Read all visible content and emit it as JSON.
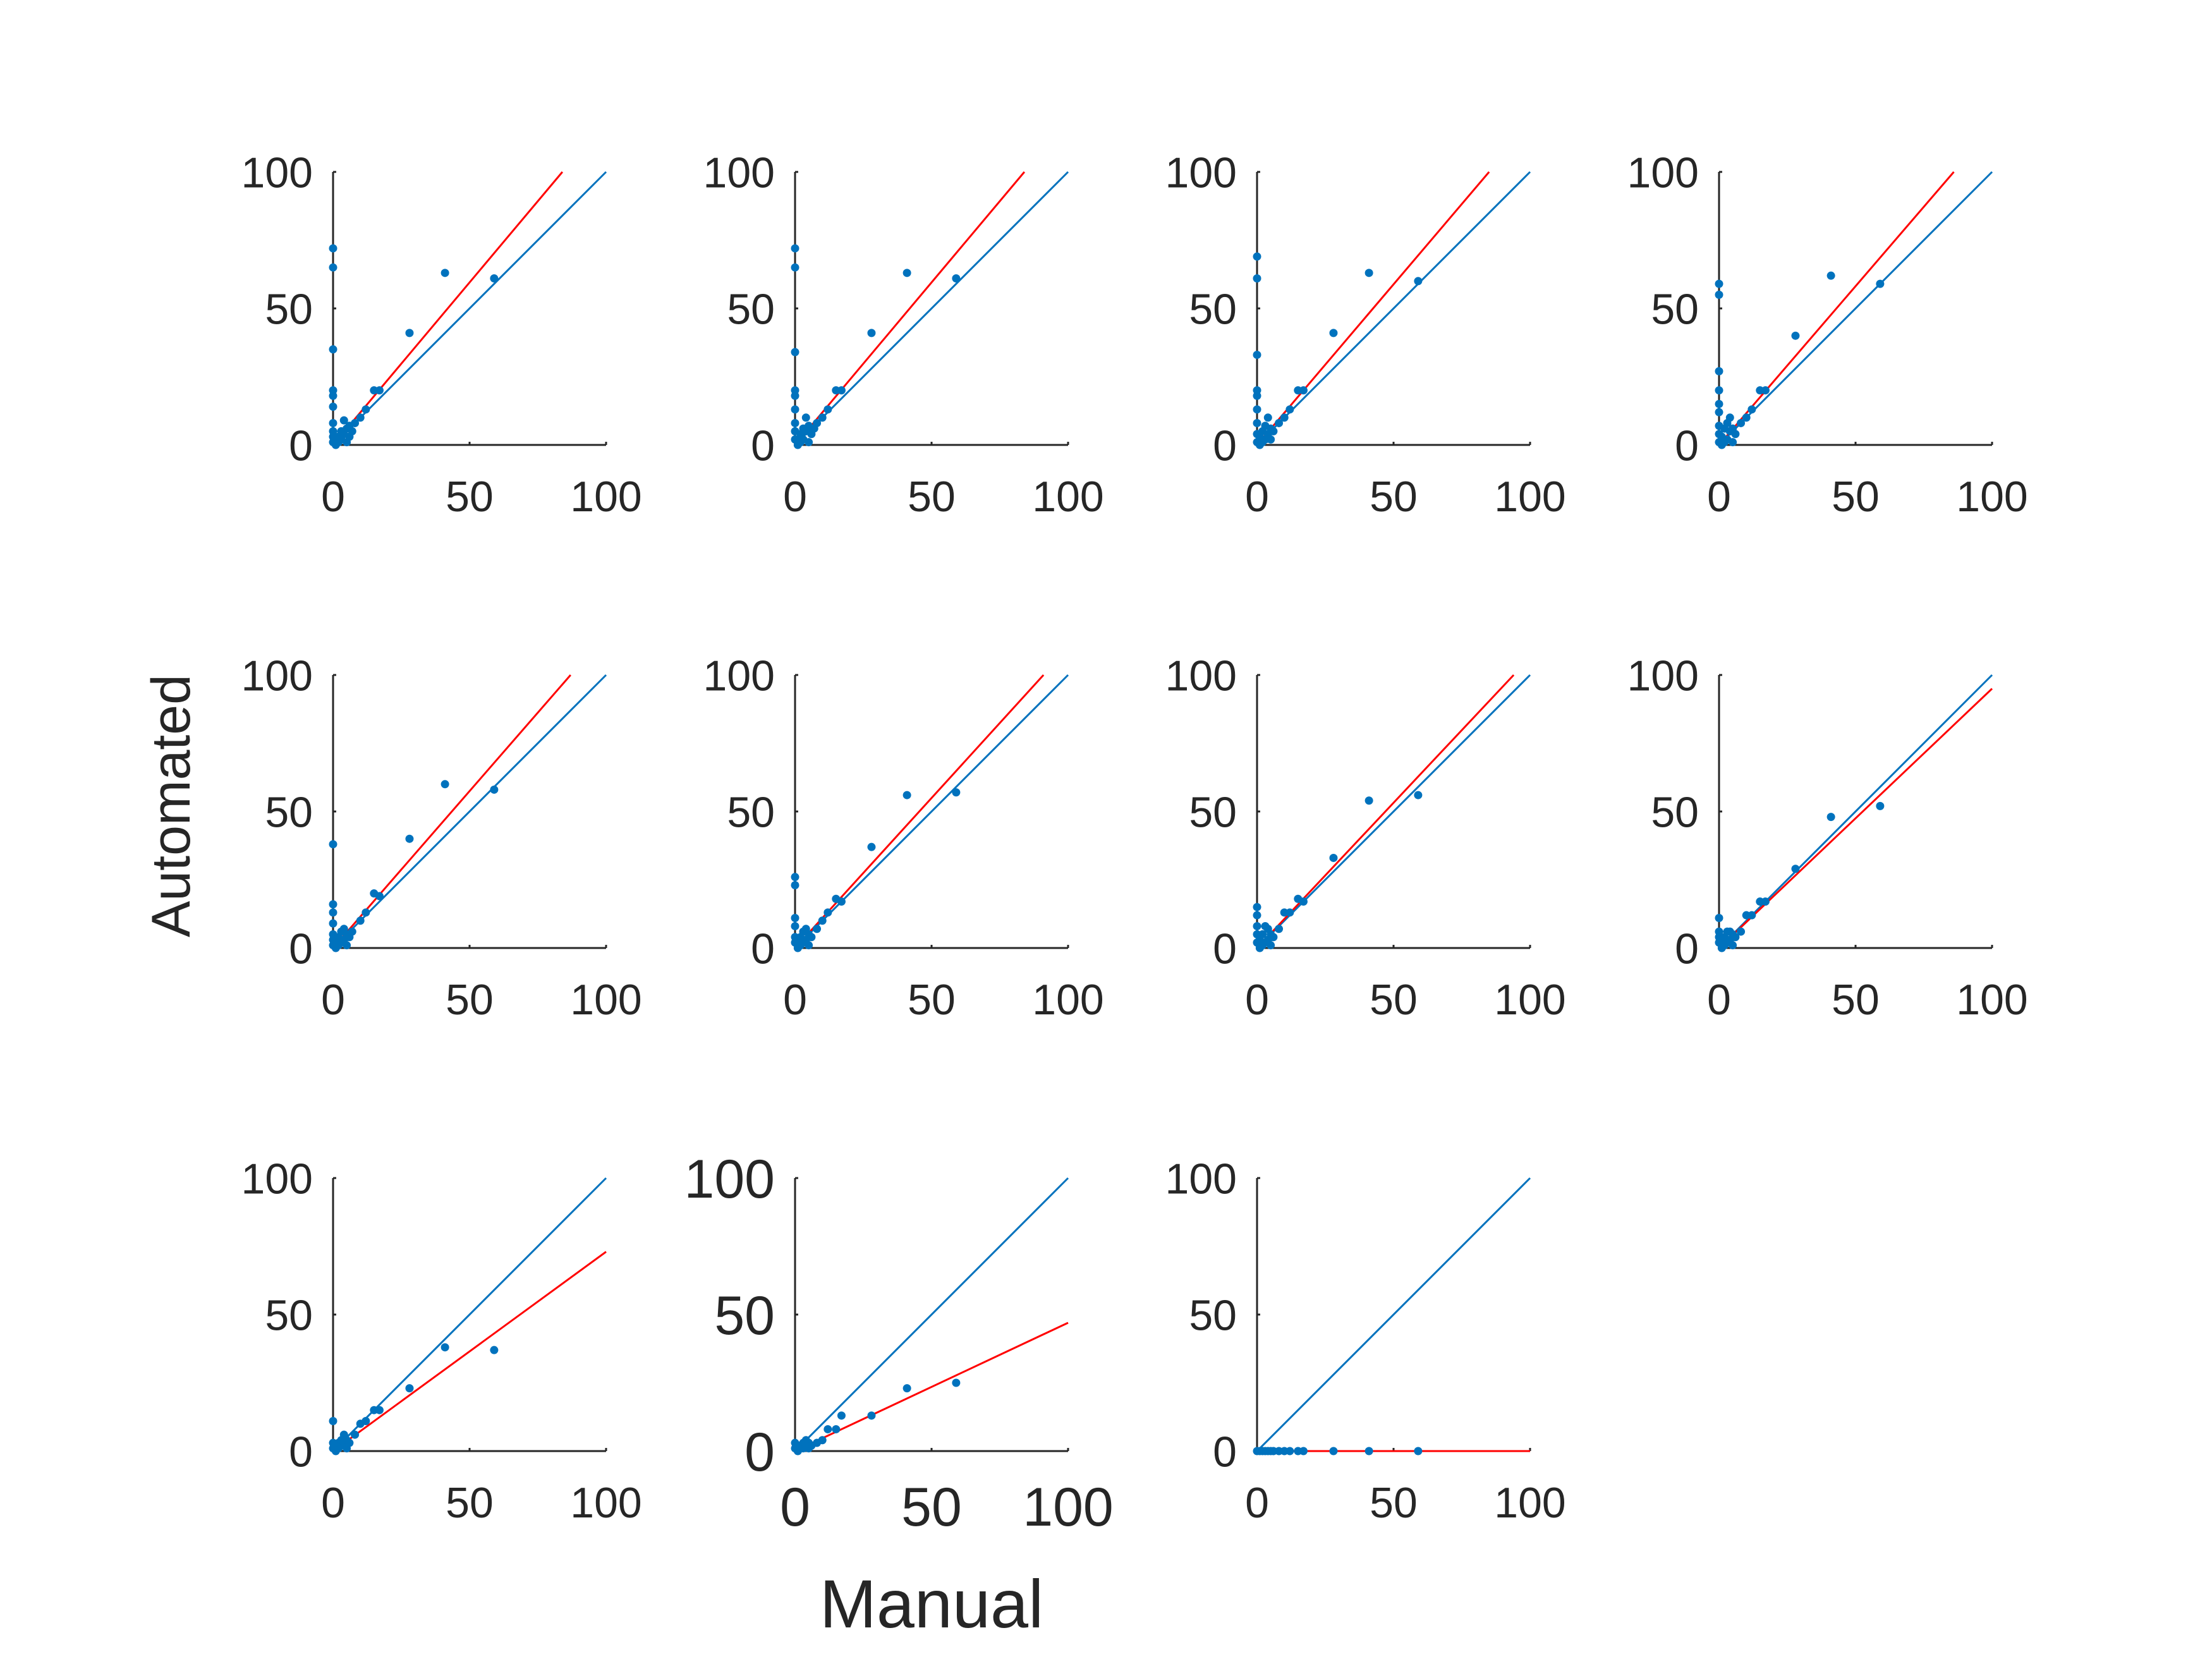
{
  "figure": {
    "xlabel": "Manual",
    "ylabel": "Automated",
    "colors": {
      "points": "#0072BD",
      "identity_line": "#0072BD",
      "fit_line": "#FF0000",
      "axis": "#262626"
    }
  },
  "chart_data": [
    {
      "type": "scatter",
      "row": 1,
      "col": 1,
      "xlim": [
        0,
        100
      ],
      "ylim": [
        0,
        100
      ],
      "xticks": [
        "0",
        "50",
        "100"
      ],
      "yticks": [
        "0",
        "50",
        "100"
      ],
      "grid": false,
      "identity_line": [
        [
          0,
          0
        ],
        [
          100,
          100
        ]
      ],
      "fit_line": [
        [
          0,
          0
        ],
        [
          84,
          100
        ]
      ],
      "points": [
        [
          0,
          72
        ],
        [
          0,
          65
        ],
        [
          0,
          35
        ],
        [
          0,
          20
        ],
        [
          0,
          18
        ],
        [
          0,
          14
        ],
        [
          0,
          8
        ],
        [
          0,
          5
        ],
        [
          0,
          3
        ],
        [
          0,
          1
        ],
        [
          1,
          0
        ],
        [
          1,
          2
        ],
        [
          2,
          1
        ],
        [
          2,
          3
        ],
        [
          3,
          2
        ],
        [
          3,
          5
        ],
        [
          4,
          4
        ],
        [
          4,
          9
        ],
        [
          5,
          1
        ],
        [
          5,
          6
        ],
        [
          6,
          3
        ],
        [
          6,
          7
        ],
        [
          7,
          5
        ],
        [
          8,
          8
        ],
        [
          10,
          10
        ],
        [
          12,
          13
        ],
        [
          15,
          20
        ],
        [
          17,
          20
        ],
        [
          28,
          41
        ],
        [
          41,
          63
        ],
        [
          59,
          61
        ]
      ]
    },
    {
      "type": "scatter",
      "row": 1,
      "col": 2,
      "xlim": [
        0,
        100
      ],
      "ylim": [
        0,
        100
      ],
      "xticks": [
        "0",
        "50",
        "100"
      ],
      "yticks": [
        "0",
        "50",
        "100"
      ],
      "grid": false,
      "identity_line": [
        [
          0,
          0
        ],
        [
          100,
          100
        ]
      ],
      "fit_line": [
        [
          0,
          0
        ],
        [
          84,
          100
        ]
      ],
      "points": [
        [
          0,
          72
        ],
        [
          0,
          65
        ],
        [
          0,
          34
        ],
        [
          0,
          20
        ],
        [
          0,
          18
        ],
        [
          0,
          13
        ],
        [
          0,
          8
        ],
        [
          0,
          5
        ],
        [
          0,
          2
        ],
        [
          1,
          0
        ],
        [
          1,
          2
        ],
        [
          2,
          1
        ],
        [
          2,
          4
        ],
        [
          3,
          2
        ],
        [
          3,
          6
        ],
        [
          4,
          5
        ],
        [
          4,
          10
        ],
        [
          5,
          1
        ],
        [
          5,
          7
        ],
        [
          6,
          4
        ],
        [
          7,
          6
        ],
        [
          8,
          8
        ],
        [
          10,
          10
        ],
        [
          12,
          13
        ],
        [
          15,
          20
        ],
        [
          17,
          20
        ],
        [
          28,
          41
        ],
        [
          41,
          63
        ],
        [
          59,
          61
        ]
      ]
    },
    {
      "type": "scatter",
      "row": 1,
      "col": 3,
      "xlim": [
        0,
        100
      ],
      "ylim": [
        0,
        100
      ],
      "xticks": [
        "0",
        "50",
        "100"
      ],
      "yticks": [
        "0",
        "50",
        "100"
      ],
      "grid": false,
      "identity_line": [
        [
          0,
          0
        ],
        [
          100,
          100
        ]
      ],
      "fit_line": [
        [
          0,
          0
        ],
        [
          85,
          100
        ]
      ],
      "points": [
        [
          0,
          69
        ],
        [
          0,
          61
        ],
        [
          0,
          33
        ],
        [
          0,
          20
        ],
        [
          0,
          18
        ],
        [
          0,
          13
        ],
        [
          0,
          8
        ],
        [
          0,
          4
        ],
        [
          0,
          1
        ],
        [
          1,
          0
        ],
        [
          1,
          3
        ],
        [
          2,
          1
        ],
        [
          2,
          5
        ],
        [
          3,
          2
        ],
        [
          3,
          7
        ],
        [
          4,
          4
        ],
        [
          4,
          10
        ],
        [
          5,
          2
        ],
        [
          5,
          6
        ],
        [
          6,
          5
        ],
        [
          8,
          8
        ],
        [
          10,
          10
        ],
        [
          12,
          13
        ],
        [
          15,
          20
        ],
        [
          17,
          20
        ],
        [
          28,
          41
        ],
        [
          41,
          63
        ],
        [
          59,
          60
        ]
      ]
    },
    {
      "type": "scatter",
      "row": 1,
      "col": 4,
      "xlim": [
        0,
        100
      ],
      "ylim": [
        0,
        100
      ],
      "xticks": [
        "0",
        "50",
        "100"
      ],
      "yticks": [
        "0",
        "50",
        "100"
      ],
      "grid": false,
      "identity_line": [
        [
          0,
          0
        ],
        [
          100,
          100
        ]
      ],
      "fit_line": [
        [
          0,
          0
        ],
        [
          86,
          100
        ]
      ],
      "points": [
        [
          0,
          59
        ],
        [
          0,
          55
        ],
        [
          0,
          27
        ],
        [
          0,
          20
        ],
        [
          0,
          15
        ],
        [
          0,
          12
        ],
        [
          0,
          7
        ],
        [
          0,
          4
        ],
        [
          0,
          1
        ],
        [
          1,
          0
        ],
        [
          1,
          3
        ],
        [
          2,
          1
        ],
        [
          2,
          6
        ],
        [
          3,
          2
        ],
        [
          3,
          8
        ],
        [
          4,
          5
        ],
        [
          4,
          10
        ],
        [
          5,
          1
        ],
        [
          5,
          6
        ],
        [
          6,
          4
        ],
        [
          8,
          8
        ],
        [
          10,
          10
        ],
        [
          12,
          13
        ],
        [
          15,
          20
        ],
        [
          17,
          20
        ],
        [
          28,
          40
        ],
        [
          41,
          62
        ],
        [
          59,
          59
        ]
      ]
    },
    {
      "type": "scatter",
      "row": 2,
      "col": 1,
      "xlim": [
        0,
        100
      ],
      "ylim": [
        0,
        100
      ],
      "xticks": [
        "0",
        "50",
        "100"
      ],
      "yticks": [
        "0",
        "50",
        "100"
      ],
      "grid": false,
      "identity_line": [
        [
          0,
          0
        ],
        [
          100,
          100
        ]
      ],
      "fit_line": [
        [
          0,
          0
        ],
        [
          87,
          100
        ]
      ],
      "points": [
        [
          0,
          38
        ],
        [
          0,
          16
        ],
        [
          0,
          13
        ],
        [
          0,
          9
        ],
        [
          0,
          5
        ],
        [
          0,
          3
        ],
        [
          0,
          1
        ],
        [
          1,
          0
        ],
        [
          1,
          2
        ],
        [
          2,
          1
        ],
        [
          2,
          4
        ],
        [
          3,
          2
        ],
        [
          3,
          6
        ],
        [
          4,
          3
        ],
        [
          4,
          7
        ],
        [
          5,
          1
        ],
        [
          5,
          5
        ],
        [
          6,
          4
        ],
        [
          7,
          6
        ],
        [
          10,
          10
        ],
        [
          12,
          13
        ],
        [
          15,
          20
        ],
        [
          17,
          19
        ],
        [
          28,
          40
        ],
        [
          41,
          60
        ],
        [
          59,
          58
        ]
      ]
    },
    {
      "type": "scatter",
      "row": 2,
      "col": 2,
      "xlim": [
        0,
        100
      ],
      "ylim": [
        0,
        100
      ],
      "xticks": [
        "0",
        "50",
        "100"
      ],
      "yticks": [
        "0",
        "50",
        "100"
      ],
      "grid": false,
      "identity_line": [
        [
          0,
          0
        ],
        [
          100,
          100
        ]
      ],
      "fit_line": [
        [
          0,
          0
        ],
        [
          91,
          100
        ]
      ],
      "points": [
        [
          0,
          26
        ],
        [
          0,
          23
        ],
        [
          0,
          11
        ],
        [
          0,
          8
        ],
        [
          0,
          4
        ],
        [
          0,
          2
        ],
        [
          1,
          0
        ],
        [
          1,
          2
        ],
        [
          2,
          1
        ],
        [
          2,
          4
        ],
        [
          3,
          2
        ],
        [
          3,
          6
        ],
        [
          4,
          3
        ],
        [
          4,
          7
        ],
        [
          5,
          1
        ],
        [
          5,
          5
        ],
        [
          6,
          4
        ],
        [
          8,
          7
        ],
        [
          10,
          10
        ],
        [
          12,
          13
        ],
        [
          15,
          18
        ],
        [
          17,
          17
        ],
        [
          28,
          37
        ],
        [
          41,
          56
        ],
        [
          59,
          57
        ]
      ]
    },
    {
      "type": "scatter",
      "row": 2,
      "col": 3,
      "xlim": [
        0,
        100
      ],
      "ylim": [
        0,
        100
      ],
      "xticks": [
        "0",
        "50",
        "100"
      ],
      "yticks": [
        "0",
        "50",
        "100"
      ],
      "grid": false,
      "identity_line": [
        [
          0,
          0
        ],
        [
          100,
          100
        ]
      ],
      "fit_line": [
        [
          0,
          0
        ],
        [
          94,
          100
        ]
      ],
      "points": [
        [
          0,
          15
        ],
        [
          0,
          12
        ],
        [
          0,
          8
        ],
        [
          0,
          5
        ],
        [
          0,
          2
        ],
        [
          1,
          0
        ],
        [
          1,
          3
        ],
        [
          2,
          1
        ],
        [
          2,
          5
        ],
        [
          3,
          2
        ],
        [
          3,
          8
        ],
        [
          4,
          3
        ],
        [
          4,
          7
        ],
        [
          5,
          1
        ],
        [
          5,
          5
        ],
        [
          6,
          4
        ],
        [
          8,
          7
        ],
        [
          10,
          13
        ],
        [
          12,
          13
        ],
        [
          15,
          18
        ],
        [
          17,
          17
        ],
        [
          28,
          33
        ],
        [
          41,
          54
        ],
        [
          59,
          56
        ]
      ]
    },
    {
      "type": "scatter",
      "row": 2,
      "col": 4,
      "xlim": [
        0,
        100
      ],
      "ylim": [
        0,
        100
      ],
      "xticks": [
        "0",
        "50",
        "100"
      ],
      "yticks": [
        "0",
        "50",
        "100"
      ],
      "grid": false,
      "identity_line": [
        [
          0,
          0
        ],
        [
          100,
          100
        ]
      ],
      "fit_line": [
        [
          0,
          0
        ],
        [
          100,
          95
        ]
      ],
      "points": [
        [
          0,
          11
        ],
        [
          0,
          6
        ],
        [
          0,
          4
        ],
        [
          0,
          2
        ],
        [
          1,
          0
        ],
        [
          1,
          3
        ],
        [
          2,
          1
        ],
        [
          2,
          4
        ],
        [
          3,
          2
        ],
        [
          3,
          6
        ],
        [
          4,
          3
        ],
        [
          4,
          6
        ],
        [
          5,
          1
        ],
        [
          5,
          5
        ],
        [
          6,
          4
        ],
        [
          8,
          6
        ],
        [
          10,
          12
        ],
        [
          12,
          12
        ],
        [
          15,
          17
        ],
        [
          17,
          17
        ],
        [
          28,
          29
        ],
        [
          41,
          48
        ],
        [
          59,
          52
        ]
      ]
    },
    {
      "type": "scatter",
      "row": 3,
      "col": 1,
      "xlim": [
        0,
        100
      ],
      "ylim": [
        0,
        100
      ],
      "xticks": [
        "0",
        "50",
        "100"
      ],
      "yticks": [
        "0",
        "50",
        "100"
      ],
      "grid": false,
      "identity_line": [
        [
          0,
          0
        ],
        [
          100,
          100
        ]
      ],
      "fit_line": [
        [
          0,
          0
        ],
        [
          100,
          73
        ]
      ],
      "points": [
        [
          0,
          11
        ],
        [
          0,
          3
        ],
        [
          0,
          1
        ],
        [
          1,
          0
        ],
        [
          1,
          2
        ],
        [
          2,
          1
        ],
        [
          2,
          3
        ],
        [
          3,
          2
        ],
        [
          3,
          4
        ],
        [
          4,
          3
        ],
        [
          4,
          6
        ],
        [
          5,
          1
        ],
        [
          5,
          4
        ],
        [
          6,
          3
        ],
        [
          8,
          6
        ],
        [
          10,
          10
        ],
        [
          12,
          11
        ],
        [
          15,
          15
        ],
        [
          17,
          15
        ],
        [
          28,
          23
        ],
        [
          41,
          38
        ],
        [
          59,
          37
        ]
      ]
    },
    {
      "type": "scatter",
      "row": 3,
      "col": 2,
      "xlim": [
        0,
        100
      ],
      "ylim": [
        0,
        100
      ],
      "xticks": [
        "0",
        "50",
        "100"
      ],
      "yticks": [
        "0",
        "50",
        "100"
      ],
      "grid": false,
      "identity_line": [
        [
          0,
          0
        ],
        [
          100,
          100
        ]
      ],
      "fit_line": [
        [
          0,
          0
        ],
        [
          100,
          47
        ]
      ],
      "points": [
        [
          0,
          3
        ],
        [
          0,
          1
        ],
        [
          1,
          0
        ],
        [
          1,
          2
        ],
        [
          2,
          1
        ],
        [
          2,
          2
        ],
        [
          3,
          1
        ],
        [
          3,
          3
        ],
        [
          4,
          2
        ],
        [
          4,
          4
        ],
        [
          5,
          1
        ],
        [
          5,
          3
        ],
        [
          6,
          2
        ],
        [
          8,
          3
        ],
        [
          10,
          4
        ],
        [
          12,
          8
        ],
        [
          15,
          8
        ],
        [
          17,
          13
        ],
        [
          28,
          13
        ],
        [
          41,
          23
        ],
        [
          59,
          25
        ]
      ]
    },
    {
      "type": "scatter",
      "row": 3,
      "col": 3,
      "xlim": [
        0,
        100
      ],
      "ylim": [
        0,
        100
      ],
      "xticks": [
        "0",
        "50",
        "100"
      ],
      "yticks": [
        "0",
        "50",
        "100"
      ],
      "grid": false,
      "identity_line": [
        [
          0,
          0
        ],
        [
          100,
          100
        ]
      ],
      "fit_line": [
        [
          0,
          0
        ],
        [
          100,
          0
        ]
      ],
      "points": [
        [
          0,
          0
        ],
        [
          1,
          0
        ],
        [
          2,
          0
        ],
        [
          3,
          0
        ],
        [
          4,
          0
        ],
        [
          5,
          0
        ],
        [
          6,
          0
        ],
        [
          8,
          0
        ],
        [
          10,
          0
        ],
        [
          12,
          0
        ],
        [
          15,
          0
        ],
        [
          17,
          0
        ],
        [
          28,
          0
        ],
        [
          41,
          0
        ],
        [
          59,
          0
        ]
      ]
    }
  ]
}
